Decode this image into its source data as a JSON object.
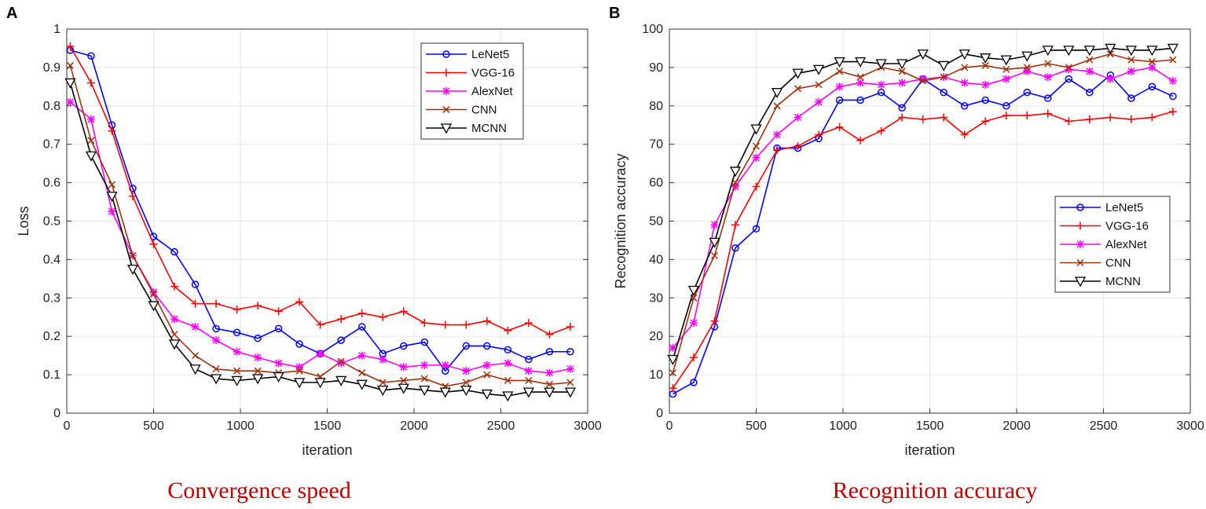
{
  "panels": [
    {
      "letter": "A",
      "caption": "Convergence speed"
    },
    {
      "letter": "B",
      "caption": "Recognition accuracy"
    }
  ],
  "colors": {
    "LeNet5": "#0000ff",
    "VGG-16": "#ff0000",
    "AlexNet": "#ff00ff",
    "CNN": "#a0300a",
    "MCNN": "#000000"
  },
  "chart_data": [
    {
      "type": "line",
      "title": "Convergence speed",
      "xlabel": "iteration",
      "ylabel": "Loss",
      "xlim": [
        0,
        3000
      ],
      "ylim": [
        0,
        1
      ],
      "xticks": [
        "0",
        "500",
        "1000",
        "1500",
        "2000",
        "2500",
        "3000"
      ],
      "yticks": [
        "0",
        "0.1",
        "0.2",
        "0.3",
        "0.4",
        "0.5",
        "0.6",
        "0.7",
        "0.8",
        "0.9",
        "1"
      ],
      "grid": true,
      "legend_position": "top-right",
      "x": [
        20,
        140,
        260,
        380,
        500,
        620,
        740,
        860,
        980,
        1100,
        1220,
        1340,
        1460,
        1580,
        1700,
        1820,
        1940,
        2060,
        2180,
        2300,
        2420,
        2540,
        2660,
        2780,
        2900
      ],
      "series": [
        {
          "name": "LeNet5",
          "marker": "circle",
          "values": [
            0.945,
            0.93,
            0.75,
            0.585,
            0.46,
            0.42,
            0.335,
            0.22,
            0.21,
            0.195,
            0.22,
            0.18,
            0.155,
            0.19,
            0.225,
            0.155,
            0.175,
            0.185,
            0.11,
            0.175,
            0.175,
            0.165,
            0.14,
            0.16,
            0.16
          ]
        },
        {
          "name": "VGG-16",
          "marker": "plus",
          "values": [
            0.955,
            0.86,
            0.735,
            0.565,
            0.44,
            0.33,
            0.285,
            0.285,
            0.27,
            0.28,
            0.265,
            0.29,
            0.23,
            0.245,
            0.26,
            0.25,
            0.265,
            0.235,
            0.23,
            0.23,
            0.24,
            0.215,
            0.235,
            0.205,
            0.225
          ]
        },
        {
          "name": "AlexNet",
          "marker": "star",
          "values": [
            0.81,
            0.765,
            0.525,
            0.41,
            0.315,
            0.245,
            0.225,
            0.19,
            0.16,
            0.145,
            0.13,
            0.12,
            0.155,
            0.13,
            0.15,
            0.14,
            0.12,
            0.125,
            0.125,
            0.11,
            0.125,
            0.13,
            0.11,
            0.105,
            0.115
          ]
        },
        {
          "name": "CNN",
          "marker": "x",
          "values": [
            0.905,
            0.71,
            0.595,
            0.41,
            0.31,
            0.205,
            0.15,
            0.115,
            0.11,
            0.11,
            0.105,
            0.11,
            0.095,
            0.135,
            0.105,
            0.08,
            0.085,
            0.09,
            0.07,
            0.08,
            0.1,
            0.085,
            0.085,
            0.075,
            0.08
          ]
        },
        {
          "name": "MCNN",
          "marker": "triangle-down",
          "values": [
            0.86,
            0.67,
            0.565,
            0.375,
            0.28,
            0.18,
            0.115,
            0.09,
            0.085,
            0.09,
            0.095,
            0.08,
            0.08,
            0.085,
            0.075,
            0.06,
            0.065,
            0.06,
            0.055,
            0.06,
            0.05,
            0.045,
            0.055,
            0.055,
            0.055
          ]
        }
      ]
    },
    {
      "type": "line",
      "title": "Recognition accuracy",
      "xlabel": "iteration",
      "ylabel": "Recognition accuracy",
      "xlim": [
        0,
        3000
      ],
      "ylim": [
        0,
        100
      ],
      "xticks": [
        "0",
        "500",
        "1000",
        "1500",
        "2000",
        "2500",
        "3000"
      ],
      "yticks": [
        "0",
        "10",
        "20",
        "30",
        "40",
        "50",
        "60",
        "70",
        "80",
        "90",
        "100"
      ],
      "grid": true,
      "legend_position": "center-right",
      "x": [
        20,
        140,
        260,
        380,
        500,
        620,
        740,
        860,
        980,
        1100,
        1220,
        1340,
        1460,
        1580,
        1700,
        1820,
        1940,
        2060,
        2180,
        2300,
        2420,
        2540,
        2660,
        2780,
        2900
      ],
      "series": [
        {
          "name": "LeNet5",
          "marker": "circle",
          "values": [
            5,
            8,
            22.5,
            43,
            48,
            69,
            69,
            71.5,
            81.5,
            81.5,
            83.5,
            79.5,
            87,
            83.5,
            80,
            81.5,
            80,
            83.5,
            82,
            87,
            83.5,
            88,
            82,
            85,
            82.5
          ]
        },
        {
          "name": "VGG-16",
          "marker": "plus",
          "values": [
            6.5,
            14.5,
            24,
            49,
            59,
            68.5,
            69.5,
            72.5,
            74.5,
            71,
            73.5,
            77,
            76.5,
            77,
            72.5,
            76,
            77.5,
            77.5,
            78,
            76,
            76.5,
            77,
            76.5,
            77,
            78.5
          ]
        },
        {
          "name": "AlexNet",
          "marker": "star",
          "values": [
            17,
            23.5,
            49,
            59,
            66.5,
            72.5,
            77,
            81,
            85,
            86,
            85.5,
            86,
            87,
            87.5,
            86,
            85.5,
            87,
            89,
            87.5,
            89.5,
            89,
            87,
            89,
            90,
            86.5
          ]
        },
        {
          "name": "CNN",
          "marker": "x",
          "values": [
            10.5,
            30,
            41,
            60,
            69.5,
            80,
            84.5,
            85.5,
            89,
            87.5,
            90,
            89,
            86.5,
            87.5,
            90,
            90.5,
            89.5,
            90,
            91,
            90,
            92,
            93.5,
            92,
            91.5,
            92
          ]
        },
        {
          "name": "MCNN",
          "marker": "triangle-down",
          "values": [
            14,
            32,
            44.5,
            63,
            74,
            83.5,
            88.5,
            89.5,
            91.5,
            91.5,
            91,
            91,
            93.5,
            90.5,
            93.5,
            92.5,
            92,
            93,
            94.5,
            94.5,
            94.5,
            95,
            94.5,
            94.5,
            95
          ]
        }
      ]
    }
  ]
}
